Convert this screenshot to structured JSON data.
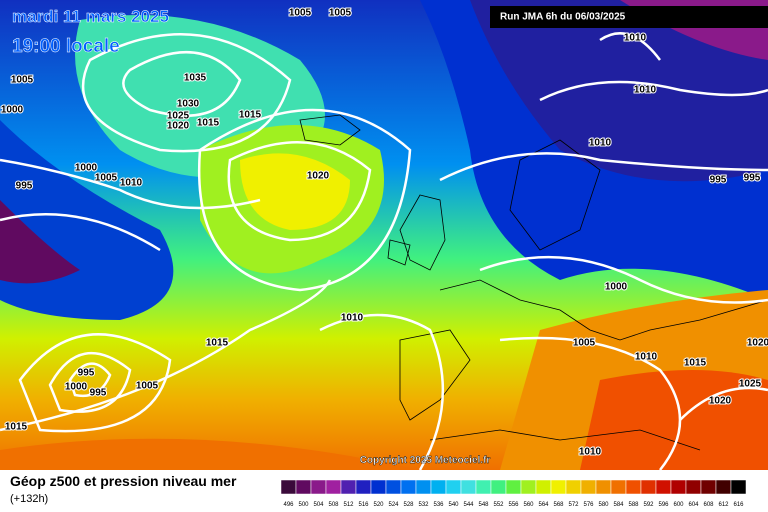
{
  "header": {
    "title": "mardi 11 mars 2025",
    "time": "19:00 locale",
    "run": "Run JMA 6h du 06/03/2025"
  },
  "map": {
    "isobar_labels": [
      "1005",
      "1005",
      "1010",
      "1005",
      "1000",
      "1035",
      "1030",
      "1025",
      "1020",
      "1015",
      "1015",
      "1010",
      "1010",
      "1000",
      "1005",
      "1010",
      "995",
      "1020",
      "995",
      "995",
      "1000",
      "1010",
      "1015",
      "1005",
      "1010",
      "1015",
      "995",
      "1000",
      "995",
      "1005",
      "1025",
      "1020",
      "1015",
      "1010",
      "1020"
    ],
    "copyright": "Copyright 2025 Meteociel.fr"
  },
  "legend": {
    "title": "Géop z500 et pression niveau mer",
    "lead": "(+132h)",
    "scale": [
      496,
      500,
      504,
      508,
      512,
      516,
      520,
      524,
      528,
      532,
      536,
      540,
      544,
      548,
      552,
      556,
      560,
      564,
      568,
      572,
      576,
      580,
      584,
      588,
      592,
      596,
      600,
      604,
      608,
      612,
      616
    ],
    "colors": [
      "#3a0a3a",
      "#600a60",
      "#8a1a8a",
      "#a020a0",
      "#5020b0",
      "#2020c0",
      "#0030d0",
      "#0050e0",
      "#0070f0",
      "#0090f0",
      "#00b0f0",
      "#20d0f0",
      "#40e0e0",
      "#40f0b0",
      "#40f080",
      "#60f040",
      "#a0f020",
      "#d0f000",
      "#f0f000",
      "#f0d000",
      "#f0b000",
      "#f09000",
      "#f07000",
      "#f05000",
      "#e03000",
      "#d01000",
      "#b00000",
      "#900000",
      "#700000",
      "#400000",
      "#000000"
    ]
  }
}
